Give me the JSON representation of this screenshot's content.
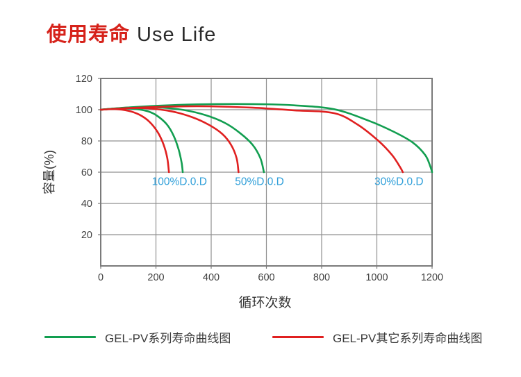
{
  "page": {
    "title_zh": "使用寿命",
    "title_en": "Use Life"
  },
  "colors": {
    "title_red": "#d6221a",
    "series_green": "#129e50",
    "series_red": "#e02020",
    "dod_blue": "#2f9fd9",
    "grid": "#909090",
    "frame": "#7a7a7a",
    "tick_text": "#404040",
    "axis_text": "#333333",
    "legend_text": "#3a3a3a"
  },
  "legend": [
    {
      "label": "GEL-PV系列寿命曲线图",
      "color": "#129e50"
    },
    {
      "label": "GEL-PV其它系列寿命曲线图",
      "color": "#e02020"
    }
  ],
  "chart_data": {
    "type": "line",
    "title": "使用寿命 Use Life",
    "xlabel": "循环次数",
    "ylabel": "容量(%)",
    "xlim": [
      0,
      1200
    ],
    "ylim": [
      0,
      120
    ],
    "xticks": [
      0,
      200,
      400,
      600,
      800,
      1000,
      1200
    ],
    "yticks": [
      20,
      40,
      60,
      80,
      100,
      120
    ],
    "grid": true,
    "legend_position": "bottom",
    "annotations": [
      {
        "text": "100%D.0.D",
        "x": 285,
        "y": 54
      },
      {
        "text": "50%D.0.D",
        "x": 575,
        "y": 54
      },
      {
        "text": "30%D.0.D",
        "x": 1080,
        "y": 54
      }
    ],
    "series": [
      {
        "name": "GEL-PV系列寿命曲线图 100%D.0.D",
        "group": "GEL-PV系列寿命曲线图",
        "dod": "100%",
        "color": "#129e50",
        "points": [
          [
            0,
            100
          ],
          [
            60,
            100.8
          ],
          [
            120,
            100.6
          ],
          [
            170,
            99
          ],
          [
            205,
            96
          ],
          [
            240,
            90.5
          ],
          [
            265,
            83
          ],
          [
            283,
            74
          ],
          [
            293,
            66
          ],
          [
            297,
            60
          ]
        ]
      },
      {
        "name": "GEL-PV其它系列寿命曲线图 100%D.0.D",
        "group": "GEL-PV其它系列寿命曲线图",
        "dod": "100%",
        "color": "#e02020",
        "points": [
          [
            0,
            100
          ],
          [
            50,
            100.4
          ],
          [
            100,
            99.3
          ],
          [
            140,
            96.8
          ],
          [
            175,
            92.5
          ],
          [
            205,
            86
          ],
          [
            227,
            78
          ],
          [
            241,
            69
          ],
          [
            247,
            60
          ]
        ]
      },
      {
        "name": "GEL-PV系列寿命曲线图 50%D.0.D",
        "group": "GEL-PV系列寿命曲线图",
        "dod": "50%",
        "color": "#129e50",
        "points": [
          [
            0,
            100
          ],
          [
            100,
            101.4
          ],
          [
            200,
            101.6
          ],
          [
            300,
            99.8
          ],
          [
            380,
            96.5
          ],
          [
            450,
            91.5
          ],
          [
            505,
            85
          ],
          [
            550,
            77.5
          ],
          [
            578,
            69
          ],
          [
            591,
            60
          ]
        ]
      },
      {
        "name": "GEL-PV其它系列寿命曲线图 50%D.0.D",
        "group": "GEL-PV其它系列寿命曲线图",
        "dod": "50%",
        "color": "#e02020",
        "points": [
          [
            0,
            100
          ],
          [
            80,
            100.9
          ],
          [
            170,
            100.9
          ],
          [
            260,
            98.8
          ],
          [
            330,
            95.3
          ],
          [
            390,
            90.5
          ],
          [
            440,
            84.5
          ],
          [
            472,
            77.5
          ],
          [
            492,
            69
          ],
          [
            499,
            60
          ]
        ]
      },
      {
        "name": "GEL-PV系列寿命曲线图 30%D.0.D",
        "group": "GEL-PV系列寿命曲线图",
        "dod": "30%",
        "color": "#129e50",
        "points": [
          [
            0,
            100
          ],
          [
            150,
            102
          ],
          [
            350,
            103.4
          ],
          [
            550,
            103.6
          ],
          [
            700,
            102.8
          ],
          [
            845,
            100.3
          ],
          [
            970,
            93
          ],
          [
            1060,
            86
          ],
          [
            1130,
            79
          ],
          [
            1175,
            71
          ],
          [
            1193,
            64
          ],
          [
            1200,
            60
          ]
        ]
      },
      {
        "name": "GEL-PV其它系列寿命曲线图 30%D.0.D",
        "group": "GEL-PV其它系列寿命曲线图",
        "dod": "30%",
        "color": "#e02020",
        "points": [
          [
            0,
            100
          ],
          [
            150,
            101.4
          ],
          [
            350,
            102.2
          ],
          [
            550,
            101.3
          ],
          [
            700,
            99.6
          ],
          [
            845,
            97.8
          ],
          [
            930,
            90.5
          ],
          [
            1006,
            80
          ],
          [
            1055,
            71
          ],
          [
            1085,
            63
          ],
          [
            1094,
            60
          ]
        ]
      }
    ]
  }
}
